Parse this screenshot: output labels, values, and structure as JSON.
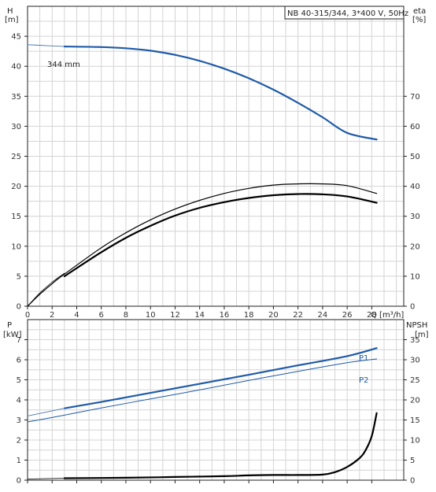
{
  "chart_data": [
    {
      "type": "line",
      "title": "NB 40-315/344, 3*400 V, 50Hz",
      "xlabel": "Q [m³/h]",
      "ylabel_left": [
        "H",
        "[m]"
      ],
      "ylabel_right": [
        "eta",
        "[%]"
      ],
      "x_ticks": [
        "0",
        "2",
        "4",
        "6",
        "8",
        "10",
        "12",
        "14",
        "16",
        "18",
        "20",
        "22",
        "24",
        "26",
        "28"
      ],
      "xlim": [
        0,
        30.6
      ],
      "ylim_left": [
        0,
        50
      ],
      "ylim_right": [
        0,
        100
      ],
      "y_ticks_left": [
        "0",
        "5",
        "10",
        "15",
        "20",
        "25",
        "30",
        "35",
        "40",
        "45"
      ],
      "y_ticks_right": [
        "0",
        "10",
        "20",
        "30",
        "40",
        "50",
        "60",
        "70"
      ],
      "grid": true,
      "annotation": "344 mm",
      "colors": {
        "head": "#1f5aa8",
        "efficiency": "#000000",
        "grid": "#d4d4d4"
      },
      "series": [
        {
          "axis": "left",
          "color": "#4a76b8",
          "line_width": 0.9,
          "points": [
            [
              0,
              43.6
            ],
            [
              1,
              43.5
            ],
            [
              2,
              43.4
            ],
            [
              3,
              43.3
            ]
          ]
        },
        {
          "axis": "left",
          "color": "#1f5aa8",
          "line_width": 2.2,
          "points": [
            [
              3,
              43.3
            ],
            [
              6,
              43.2
            ],
            [
              8,
              43.0
            ],
            [
              10,
              42.6
            ],
            [
              12,
              41.9
            ],
            [
              14,
              40.9
            ],
            [
              16,
              39.6
            ],
            [
              18,
              38.0
            ],
            [
              20,
              36.1
            ],
            [
              22,
              33.9
            ],
            [
              24,
              31.5
            ],
            [
              26,
              28.9
            ],
            [
              28.4,
              27.8
            ]
          ]
        },
        {
          "axis": "right",
          "color": "#000000",
          "line_width": 1.2,
          "points": [
            [
              0,
              0
            ],
            [
              1,
              4
            ],
            [
              2,
              7.5
            ],
            [
              3,
              10.7
            ],
            [
              6,
              19.5
            ],
            [
              8,
              24.5
            ],
            [
              10,
              28.8
            ],
            [
              12,
              32.4
            ],
            [
              14,
              35.3
            ],
            [
              16,
              37.6
            ],
            [
              18,
              39.3
            ],
            [
              20,
              40.4
            ],
            [
              22,
              40.8
            ],
            [
              24,
              40.8
            ],
            [
              26,
              40.2
            ],
            [
              28.4,
              37.6
            ]
          ]
        },
        {
          "axis": "right",
          "color": "#000000",
          "line_width": 2.2,
          "points": [
            [
              3,
              10
            ],
            [
              6,
              18
            ],
            [
              8,
              22.8
            ],
            [
              10,
              26.8
            ],
            [
              12,
              30.2
            ],
            [
              14,
              32.8
            ],
            [
              16,
              34.7
            ],
            [
              18,
              36.1
            ],
            [
              20,
              37
            ],
            [
              22,
              37.4
            ],
            [
              24,
              37.3
            ],
            [
              26,
              36.6
            ],
            [
              28.4,
              34.5
            ]
          ]
        },
        {
          "axis": "left",
          "color": "#000000",
          "line_width": 0.8,
          "points": [
            [
              0,
              0
            ],
            [
              1,
              2.2
            ],
            [
              2,
              4
            ],
            [
              3,
              5.5
            ]
          ]
        }
      ]
    },
    {
      "type": "line",
      "xlabel": "",
      "ylabel_left": [
        "P",
        "[kW]"
      ],
      "ylabel_right": [
        "NPSH",
        "[m]"
      ],
      "xlim": [
        0,
        30.6
      ],
      "ylim_left": [
        0,
        8
      ],
      "ylim_right": [
        0,
        40
      ],
      "y_ticks_left": [
        "0",
        "1",
        "2",
        "3",
        "4",
        "5",
        "6",
        "7"
      ],
      "y_ticks_right": [
        "0",
        "5",
        "10",
        "15",
        "20",
        "25",
        "30",
        "35"
      ],
      "grid": true,
      "colors": {
        "power": "#1f5aa8",
        "npsh": "#000000"
      },
      "series": [
        {
          "name": "P1",
          "axis": "left",
          "color": "#1f5aa8",
          "line_width": 2.2,
          "points": [
            [
              3,
              3.58
            ],
            [
              6,
              3.9
            ],
            [
              10,
              4.35
            ],
            [
              14,
              4.8
            ],
            [
              18,
              5.25
            ],
            [
              22,
              5.72
            ],
            [
              26,
              6.18
            ],
            [
              28.4,
              6.58
            ]
          ]
        },
        {
          "axis": "left",
          "color": "#4a76b8",
          "line_width": 0.9,
          "points": [
            [
              0,
              3.2
            ],
            [
              3,
              3.58
            ]
          ]
        },
        {
          "name": "P2",
          "axis": "left",
          "color": "#1f5aa8",
          "line_width": 1.0,
          "points": [
            [
              0,
              2.9
            ],
            [
              3,
              3.24
            ],
            [
              6,
              3.6
            ],
            [
              10,
              4.05
            ],
            [
              14,
              4.5
            ],
            [
              18,
              4.97
            ],
            [
              22,
              5.42
            ],
            [
              26,
              5.85
            ],
            [
              28.4,
              6.04
            ]
          ]
        },
        {
          "axis": "right",
          "color": "#000000",
          "line_width": 0.8,
          "points": [
            [
              0,
              0.3
            ],
            [
              3,
              0.5
            ]
          ]
        },
        {
          "axis": "right",
          "color": "#000000",
          "line_width": 2.2,
          "points": [
            [
              3,
              0.5
            ],
            [
              8,
              0.6
            ],
            [
              12,
              0.8
            ],
            [
              16,
              1.0
            ],
            [
              18,
              1.2
            ],
            [
              20,
              1.3
            ],
            [
              22,
              1.3
            ],
            [
              24,
              1.4
            ],
            [
              25,
              2.0
            ],
            [
              26,
              3.3
            ],
            [
              27,
              5.5
            ],
            [
              27.5,
              7.5
            ],
            [
              28,
              11
            ],
            [
              28.4,
              16.7
            ]
          ]
        }
      ]
    }
  ]
}
